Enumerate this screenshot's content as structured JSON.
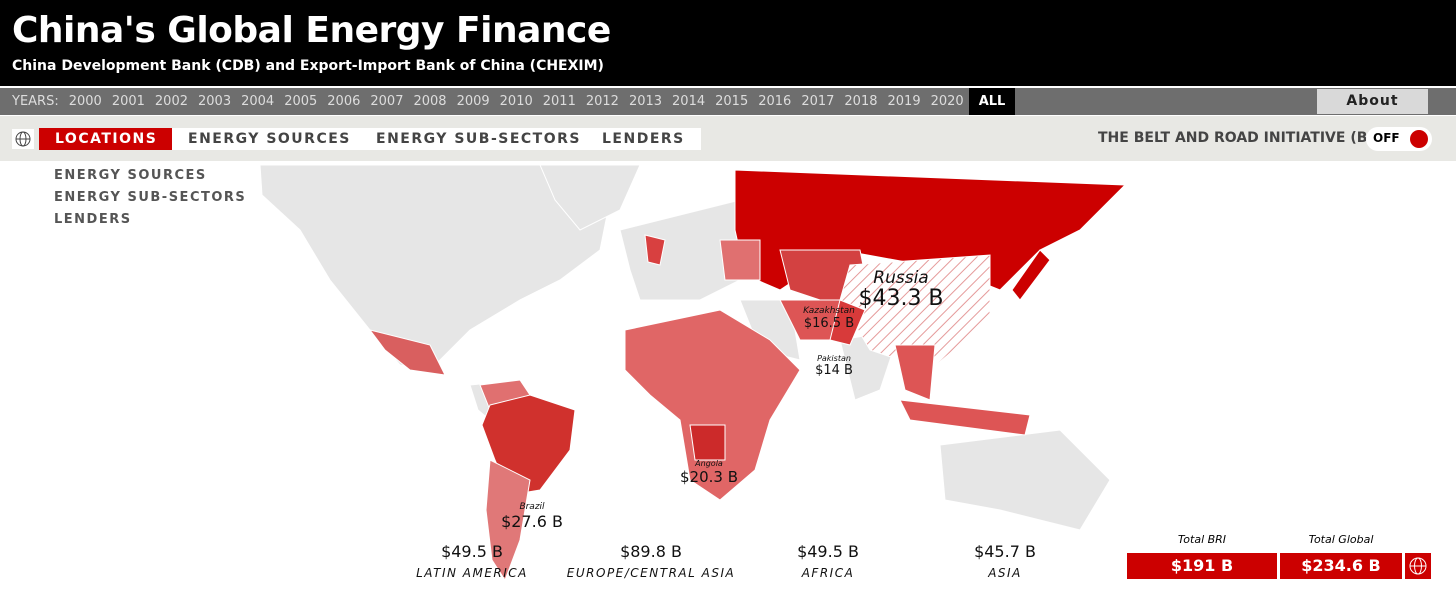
{
  "header": {
    "title": "China's Global Energy Finance",
    "subtitle": "China Development Bank (CDB) and Export-Import Bank of China (CHEXIM)"
  },
  "years": {
    "label": "YEARS:",
    "items": [
      "2000",
      "2001",
      "2002",
      "2003",
      "2004",
      "2005",
      "2006",
      "2007",
      "2008",
      "2009",
      "2010",
      "2011",
      "2012",
      "2013",
      "2014",
      "2015",
      "2016",
      "2017",
      "2018",
      "2019",
      "2020",
      "ALL"
    ],
    "selected": "ALL"
  },
  "about": "About",
  "tabs": {
    "items": [
      "LOCATIONS",
      "ENERGY SOURCES",
      "ENERGY SUB-SECTORS",
      "LENDERS"
    ],
    "selected": "LOCATIONS"
  },
  "bri": {
    "label": "THE BELT AND ROAD INITIATIVE (BRI)",
    "toggle": "OFF"
  },
  "side_menu": [
    "ENERGY SOURCES",
    "ENERGY SUB-SECTORS",
    "LENDERS"
  ],
  "map_labels": [
    {
      "country": "Russia",
      "amount": "$43.3 B"
    },
    {
      "country": "Kazakhstan",
      "amount": "$16.5 B"
    },
    {
      "country": "Pakistan",
      "amount": "$14 B"
    },
    {
      "country": "Angola",
      "amount": "$20.3 B"
    },
    {
      "country": "Brazil",
      "amount": "$27.6 B"
    }
  ],
  "regions": [
    {
      "amount": "$49.5 B",
      "name": "LATIN AMERICA"
    },
    {
      "amount": "$89.8 B",
      "name": "EUROPE/CENTRAL ASIA"
    },
    {
      "amount": "$49.5 B",
      "name": "AFRICA"
    },
    {
      "amount": "$45.7 B",
      "name": "ASIA"
    }
  ],
  "totals": [
    {
      "label": "Total BRI",
      "amount": "$191 B"
    },
    {
      "label": "Total Global",
      "amount": "$234.6 B"
    }
  ]
}
